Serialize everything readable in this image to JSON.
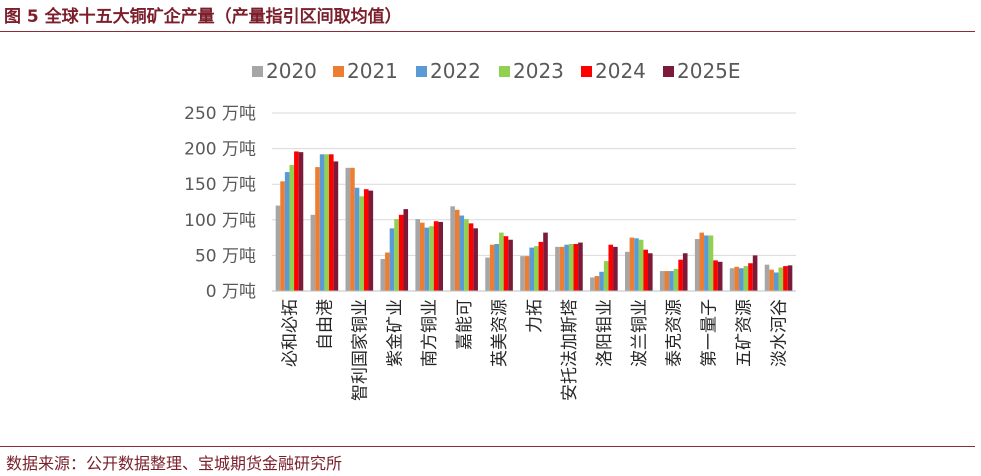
{
  "figure": {
    "title": "图 5 全球十五大铜矿企产量（产量指引区间取均值）",
    "source": "数据来源：公开数据整理、宝城期货金融研究所"
  },
  "chart_data": {
    "type": "bar",
    "ylim": [
      0,
      250
    ],
    "yticks": [
      0,
      50,
      100,
      150,
      200,
      250
    ],
    "ytick_labels": [
      "0 万吨",
      "50 万吨",
      "100 万吨",
      "150 万吨",
      "200 万吨",
      "250 万吨"
    ],
    "grid": true,
    "legend_position": "top",
    "categories": [
      "必和必拓",
      "自由港",
      "智利国家铜业",
      "紫金矿业",
      "南方铜业",
      "嘉能可",
      "英美资源",
      "力拓",
      "安托法加斯塔",
      "洛阳钼业",
      "波兰铜业",
      "泰克资源",
      "第一量子",
      "五矿资源",
      "淡水河谷"
    ],
    "series": [
      {
        "name": "2020",
        "color": "#a6a6a6",
        "values": [
          120,
          107,
          173,
          45,
          101,
          119,
          47,
          49,
          62,
          19,
          55,
          28,
          73,
          32,
          37
        ]
      },
      {
        "name": "2021",
        "color": "#ed7d31",
        "values": [
          154,
          174,
          173,
          54,
          96,
          114,
          65,
          49,
          62,
          21,
          75,
          28,
          82,
          34,
          30
        ]
      },
      {
        "name": "2022",
        "color": "#5b9bd5",
        "values": [
          167,
          192,
          145,
          88,
          89,
          106,
          66,
          61,
          65,
          27,
          74,
          28,
          78,
          32,
          26
        ]
      },
      {
        "name": "2023",
        "color": "#92d050",
        "values": [
          177,
          192,
          133,
          101,
          91,
          101,
          82,
          63,
          66,
          42,
          72,
          31,
          78,
          35,
          33
        ]
      },
      {
        "name": "2024",
        "color": "#ff0000",
        "values": [
          196,
          192,
          143,
          107,
          98,
          95,
          77,
          69,
          66,
          65,
          58,
          44,
          43,
          39,
          35
        ]
      },
      {
        "name": "2025E",
        "color": "#7b1a39",
        "values": [
          195,
          182,
          141,
          115,
          97,
          88,
          72,
          82,
          68,
          62,
          53,
          53,
          41,
          50,
          36
        ]
      }
    ]
  }
}
